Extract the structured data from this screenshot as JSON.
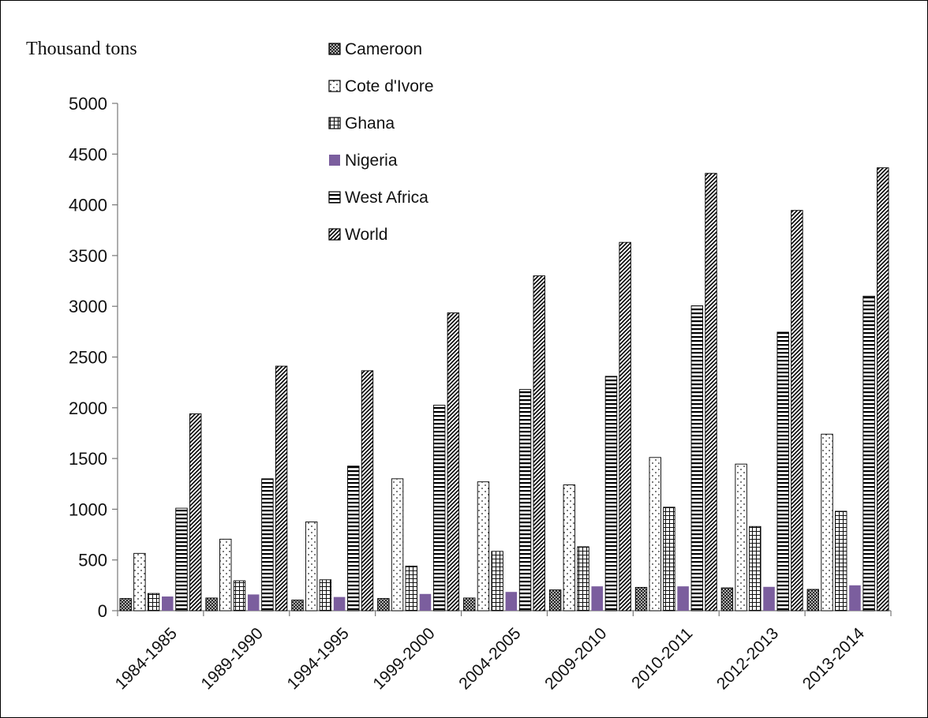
{
  "chart_data": {
    "type": "bar",
    "title": "",
    "ylabel": "Thousand tons",
    "xlabel": "",
    "ylim": [
      0,
      5000
    ],
    "yticks": [
      0,
      500,
      1000,
      1500,
      2000,
      2500,
      3000,
      3500,
      4000,
      4500,
      5000
    ],
    "categories": [
      "1984-1985",
      "1989-1990",
      "1994-1995",
      "1999-2000",
      "2004-2005",
      "2009-2010",
      "2010-2011",
      "2012-2013",
      "2013-2014"
    ],
    "series": [
      {
        "name": "Cameroon",
        "pattern": "crosshatch",
        "values": [
          120,
          125,
          105,
          120,
          125,
          205,
          230,
          225,
          210
        ]
      },
      {
        "name": "Cote d'Ivore",
        "pattern": "dots",
        "values": [
          565,
          705,
          875,
          1300,
          1270,
          1240,
          1510,
          1445,
          1740
        ]
      },
      {
        "name": "Ghana",
        "pattern": "grid",
        "values": [
          170,
          295,
          305,
          440,
          585,
          630,
          1020,
          830,
          980
        ]
      },
      {
        "name": "Nigeria",
        "pattern": "solid",
        "color": "#7b5e9e",
        "values": [
          140,
          160,
          135,
          165,
          185,
          240,
          240,
          235,
          250
        ]
      },
      {
        "name": "West Africa",
        "pattern": "hstripes",
        "values": [
          1010,
          1300,
          1425,
          2025,
          2180,
          2310,
          3005,
          2745,
          3100
        ]
      },
      {
        "name": "World",
        "pattern": "diagonal",
        "values": [
          1940,
          2410,
          2365,
          2935,
          3300,
          3630,
          4310,
          3945,
          4365
        ]
      }
    ],
    "legend_position": "top",
    "grid": false
  }
}
